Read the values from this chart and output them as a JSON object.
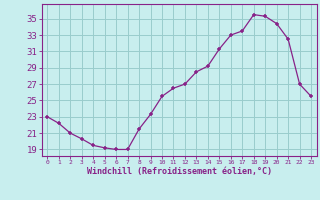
{
  "x": [
    0,
    1,
    2,
    3,
    4,
    5,
    6,
    7,
    8,
    9,
    10,
    11,
    12,
    13,
    14,
    15,
    16,
    17,
    18,
    19,
    20,
    21,
    22,
    23
  ],
  "y": [
    23,
    22.2,
    21.0,
    20.3,
    19.5,
    19.2,
    19.0,
    19.0,
    21.5,
    23.3,
    25.5,
    26.5,
    27.0,
    28.5,
    29.2,
    31.3,
    33.0,
    33.5,
    35.5,
    35.3,
    34.4,
    32.5,
    27.0,
    25.5
  ],
  "line_color": "#882288",
  "bg_color": "#c8eeee",
  "grid_color": "#99cccc",
  "xlabel": "Windchill (Refroidissement éolien,°C)",
  "ytick_values": [
    19,
    21,
    23,
    25,
    27,
    29,
    31,
    33,
    35
  ],
  "xlim": [
    -0.5,
    23.5
  ],
  "ylim": [
    18.2,
    36.8
  ],
  "font_color": "#882288",
  "tick_fontsize": 6.5,
  "xlabel_fontsize": 6.0
}
